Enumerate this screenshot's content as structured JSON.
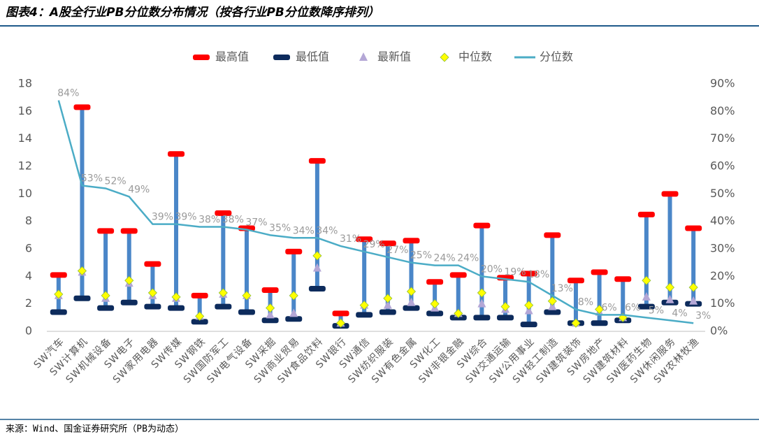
{
  "title": "图表4：A股全行业PB分位数分布情况（按各行业PB分位数降序排列）",
  "source": "来源：Wind、国金证券研究所（PB为动态）",
  "chart_data": {
    "type": "range",
    "categories": [
      "SW汽车",
      "SW计算机",
      "SW机械设备",
      "SW电子",
      "SW家用电器",
      "SW传媒",
      "SW钢铁",
      "SW国防军工",
      "SW电气设备",
      "SW采掘",
      "SW商业贸易",
      "SW食品饮料",
      "SW银行",
      "SW通信",
      "SW纺织服装",
      "SW有色金属",
      "SW化工",
      "SW非银金融",
      "SW综合",
      "SW交通运输",
      "SW公用事业",
      "SW轻工制造",
      "SW建筑装饰",
      "SW房地产",
      "SW建筑材料",
      "SW医药生物",
      "SW休闲服务",
      "SW农林牧渔"
    ],
    "series": [
      {
        "name": "最高值",
        "color": "#ff0000",
        "values": [
          4.1,
          16.3,
          7.3,
          7.3,
          4.9,
          12.9,
          2.6,
          8.6,
          7.5,
          3.0,
          5.8,
          12.4,
          1.3,
          6.7,
          6.4,
          6.6,
          3.6,
          4.1,
          7.7,
          3.9,
          4.2,
          7.0,
          3.7,
          4.3,
          3.8,
          8.5,
          10.0,
          7.5
        ]
      },
      {
        "name": "最低值",
        "color": "#0d2b5c",
        "values": [
          1.4,
          2.4,
          1.7,
          2.1,
          1.8,
          1.7,
          0.7,
          1.8,
          1.4,
          0.8,
          0.9,
          3.1,
          0.4,
          1.2,
          1.4,
          1.7,
          1.3,
          1.0,
          1.0,
          1.0,
          0.5,
          1.4,
          0.6,
          0.6,
          0.8,
          1.8,
          2.1,
          2.0
        ]
      },
      {
        "name": "最新值",
        "color": "#b4a7d6",
        "values": [
          2.6,
          4.3,
          2.4,
          3.5,
          2.6,
          2.4,
          1.1,
          2.7,
          2.6,
          1.2,
          1.3,
          4.6,
          0.6,
          1.9,
          1.9,
          2.1,
          1.7,
          1.3,
          2.0,
          1.6,
          1.5,
          1.8,
          0.6,
          1.4,
          1.0,
          2.5,
          2.3,
          2.2
        ]
      },
      {
        "name": "中位数",
        "color": "#ffff00",
        "values": [
          2.7,
          4.4,
          2.6,
          3.7,
          2.8,
          2.5,
          1.1,
          2.8,
          2.6,
          1.7,
          2.6,
          5.5,
          0.6,
          1.9,
          2.4,
          2.9,
          2.0,
          1.3,
          2.8,
          1.8,
          1.9,
          2.2,
          0.6,
          1.6,
          1.0,
          3.7,
          3.2,
          3.2
        ]
      },
      {
        "name": "分位数",
        "color": "#4bacc6",
        "axis": "y2",
        "values": [
          84,
          53,
          52,
          49,
          39,
          39,
          38,
          38,
          37,
          35,
          34,
          34,
          31,
          29,
          27,
          25,
          24,
          24,
          20,
          19,
          18,
          13,
          8,
          6,
          6,
          5,
          4,
          3
        ],
        "value_labels": [
          "84%",
          "53%",
          "52%",
          "49%",
          "39%",
          "39%",
          "38%",
          "38%",
          "37%",
          "35%",
          "34%",
          "34%",
          "31%",
          "29%",
          "27%",
          "25%",
          "24%",
          "24%",
          "20%",
          "19%",
          "18%",
          "13%",
          "8%",
          "6%",
          "6%",
          "5%",
          "4%",
          "3%"
        ]
      }
    ],
    "ylim": [
      0,
      18
    ],
    "yticks": [
      0,
      2,
      4,
      6,
      8,
      10,
      12,
      14,
      16,
      18
    ],
    "y2lim": [
      0,
      90
    ],
    "y2ticks": [
      {
        "value": 0,
        "label": "0%"
      },
      {
        "value": 10,
        "label": "10%"
      },
      {
        "value": 20,
        "label": "20%"
      },
      {
        "value": 30,
        "label": "30%"
      },
      {
        "value": 40,
        "label": "40%"
      },
      {
        "value": 50,
        "label": "50%"
      },
      {
        "value": 60,
        "label": "60%"
      },
      {
        "value": 70,
        "label": "70%"
      },
      {
        "value": 80,
        "label": "80%"
      },
      {
        "value": 90,
        "label": "90%"
      }
    ],
    "grid": false,
    "legend": "top"
  }
}
